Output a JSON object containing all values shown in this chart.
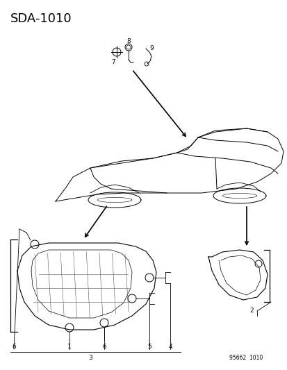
{
  "title": "SDA-1010",
  "footer": "95662  1010",
  "bg_color": "#ffffff",
  "title_fontsize": 13,
  "car_color": "black",
  "part_color": "black",
  "label_fontsize": 6.5
}
